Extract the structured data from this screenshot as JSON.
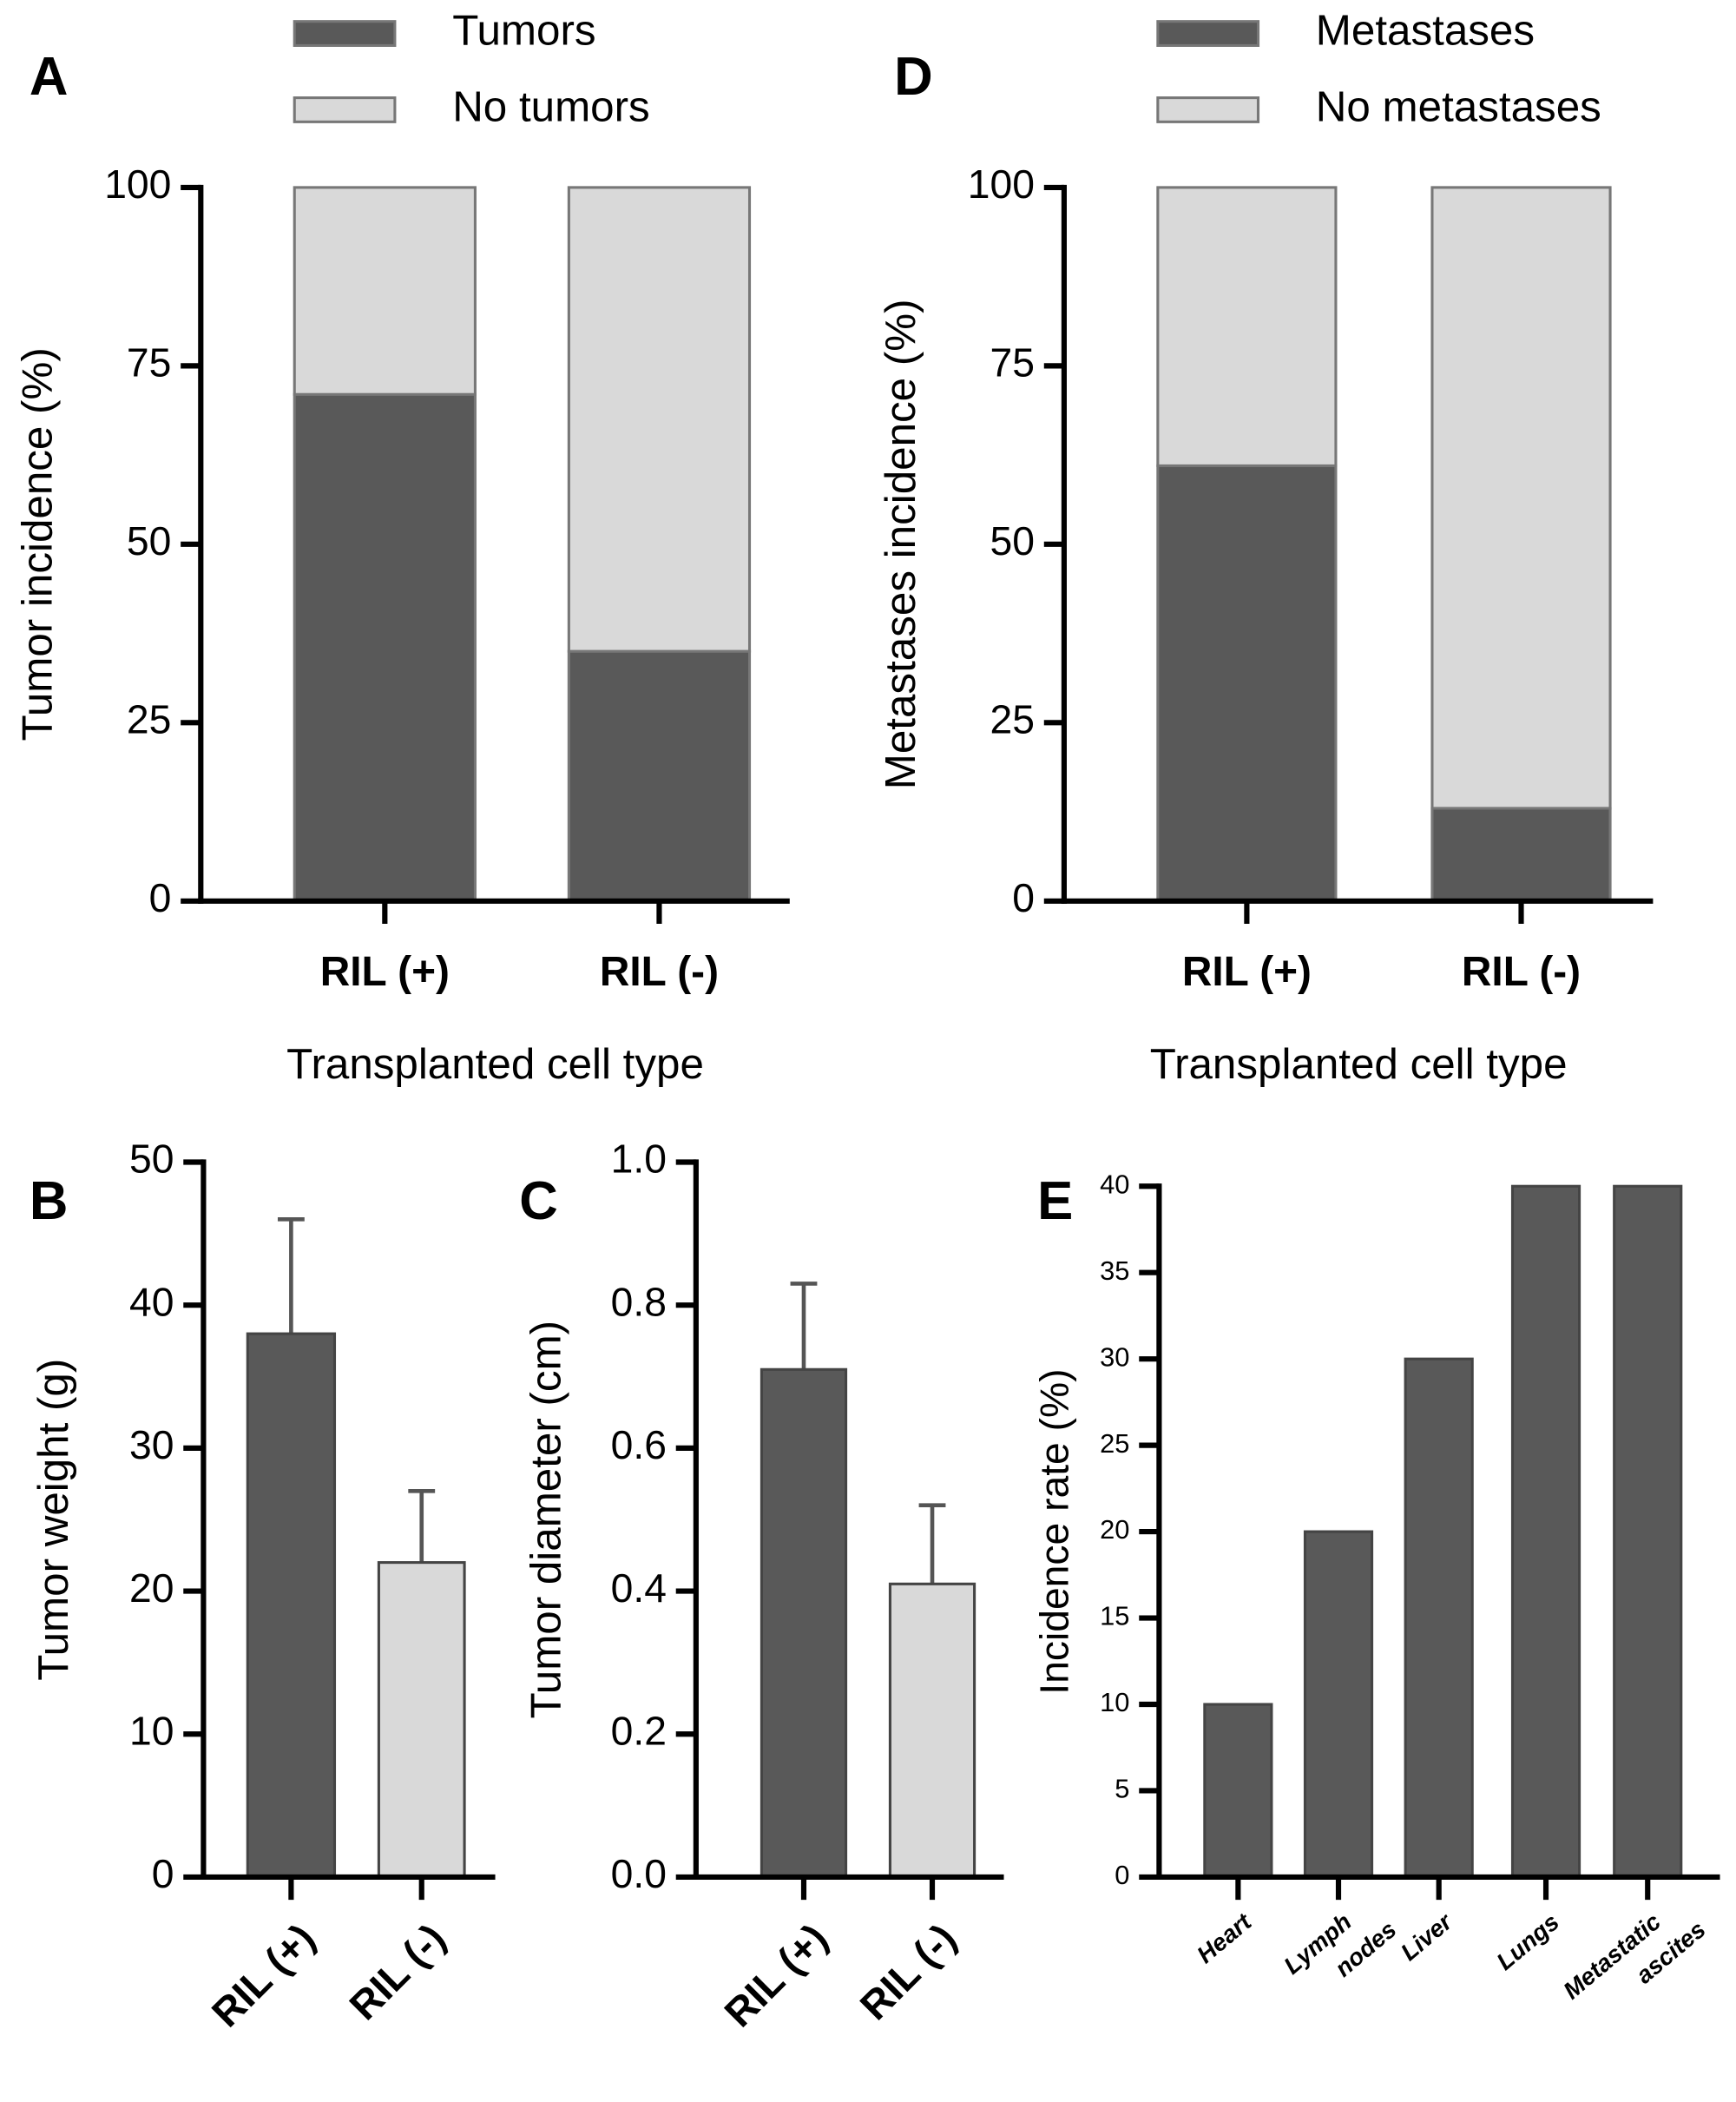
{
  "chart_data": [
    {
      "type": "stacked_bar",
      "panel": "A",
      "categories": [
        "RIL (+)",
        "RIL (-)"
      ],
      "series": [
        {
          "name": "Tumors",
          "color": "#595959",
          "values": [
            71,
            35
          ]
        },
        {
          "name": "No tumors",
          "color": "#d9d9d9",
          "values": [
            29,
            65
          ]
        }
      ],
      "x_label": "Transplanted cell type",
      "y_label": "Tumor incidence (%)",
      "ylim": [
        0,
        100
      ],
      "yticks": [
        0,
        25,
        50,
        75,
        100
      ]
    },
    {
      "type": "bar",
      "panel": "B",
      "categories": [
        "RIL (+)",
        "RIL (-)"
      ],
      "values": [
        38,
        22
      ],
      "errors": [
        8,
        5
      ],
      "colors": [
        "#595959",
        "#d9d9d9"
      ],
      "y_label": "Tumor weight (g)",
      "ylim": [
        0,
        50
      ],
      "yticks": [
        0,
        10,
        20,
        30,
        40,
        50
      ]
    },
    {
      "type": "bar",
      "panel": "C",
      "categories": [
        "RIL (+)",
        "RIL (-)"
      ],
      "values": [
        0.71,
        0.41
      ],
      "errors": [
        0.12,
        0.11
      ],
      "colors": [
        "#595959",
        "#d9d9d9"
      ],
      "y_label": "Tumor diameter (cm)",
      "ylim": [
        0,
        1
      ],
      "yticks": [
        {
          "value": 0,
          "label": "0.0"
        },
        0.2,
        0.4,
        0.6,
        0.8,
        {
          "value": 1,
          "label": "1.0"
        }
      ]
    },
    {
      "type": "stacked_bar",
      "panel": "D",
      "categories": [
        "RIL (+)",
        "RIL (-)"
      ],
      "series": [
        {
          "name": "Metastases",
          "color": "#595959",
          "values": [
            61,
            13
          ]
        },
        {
          "name": "No metastases",
          "color": "#d9d9d9",
          "values": [
            39,
            87
          ]
        }
      ],
      "x_label": "Transplanted cell type",
      "y_label": "Metastases incidence (%)",
      "ylim": [
        0,
        100
      ],
      "yticks": [
        0,
        25,
        50,
        75,
        100
      ]
    },
    {
      "type": "bar",
      "panel": "E",
      "categories": [
        "Heart",
        "Lymph nodes",
        "Liver",
        "Lungs",
        "Metastatic ascites"
      ],
      "values": [
        10,
        20,
        30,
        40,
        40
      ],
      "colors": [
        "#595959",
        "#595959",
        "#595959",
        "#595959",
        "#595959"
      ],
      "y_label": "Incidence rate (%)",
      "ylim": [
        0,
        40
      ],
      "yticks": [
        0,
        5,
        10,
        15,
        20,
        25,
        30,
        35,
        40
      ]
    }
  ]
}
